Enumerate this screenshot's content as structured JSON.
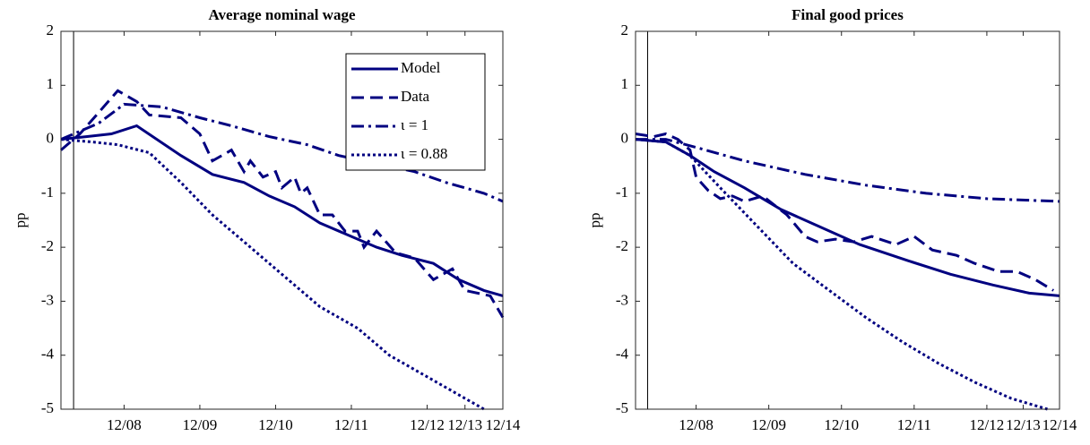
{
  "chart_data": [
    {
      "type": "line",
      "title": "Average nominal wage",
      "ylabel": "pp",
      "xlim": [
        2,
        72
      ],
      "xticks": [
        {
          "value": 12,
          "label": "12/08"
        },
        {
          "value": 24,
          "label": "12/09"
        },
        {
          "value": 36,
          "label": "12/10"
        },
        {
          "value": 48,
          "label": "12/11"
        },
        {
          "value": 60,
          "label": "12/12"
        },
        {
          "value": 66,
          "label": "12/13"
        },
        {
          "value": 72,
          "label": "12/14"
        }
      ],
      "ylim": [
        -5,
        2
      ],
      "yticks": [
        -5,
        -4,
        -3,
        -2,
        -1,
        0,
        1,
        2
      ],
      "event_x": 4,
      "legend": "upper right",
      "series": [
        {
          "name": "Model",
          "color": "#000080",
          "dash": "solid",
          "x": [
            2,
            6,
            10,
            14,
            21,
            26,
            31,
            35,
            39,
            43,
            48,
            52,
            56,
            61,
            65,
            69,
            72
          ],
          "values": [
            0,
            0.05,
            0.1,
            0.25,
            -0.3,
            -0.65,
            -0.8,
            -1.05,
            -1.25,
            -1.55,
            -1.8,
            -2.0,
            -2.15,
            -2.3,
            -2.6,
            -2.8,
            -2.9
          ]
        },
        {
          "name": "Data",
          "color": "#000080",
          "dash": "dashed",
          "x": [
            2,
            5,
            8,
            11,
            14,
            16,
            21,
            24,
            26,
            29,
            31,
            32,
            34,
            36,
            37,
            39,
            40,
            41,
            43,
            45,
            47,
            49,
            50,
            52,
            55,
            58,
            61,
            64,
            66,
            70,
            72
          ],
          "values": [
            -0.2,
            0.1,
            0.5,
            0.9,
            0.7,
            0.45,
            0.4,
            0.1,
            -0.4,
            -0.2,
            -0.6,
            -0.4,
            -0.7,
            -0.6,
            -0.9,
            -0.7,
            -1.0,
            -0.9,
            -1.4,
            -1.4,
            -1.7,
            -1.7,
            -2.0,
            -1.7,
            -2.1,
            -2.2,
            -2.6,
            -2.4,
            -2.8,
            -2.9,
            -3.3
          ]
        },
        {
          "name": "ι = 1",
          "color": "#000080",
          "dash": "dashdot",
          "x": [
            2,
            8,
            12,
            18,
            24,
            29,
            35,
            41,
            46,
            52,
            58,
            63,
            69,
            72
          ],
          "values": [
            0,
            0.3,
            0.65,
            0.6,
            0.4,
            0.25,
            0.05,
            -0.1,
            -0.3,
            -0.45,
            -0.6,
            -0.8,
            -1.0,
            -1.15
          ]
        },
        {
          "name": "ι = 0.88",
          "color": "#000080",
          "dash": "dotted",
          "x": [
            2,
            7,
            11,
            16,
            21,
            26,
            32,
            37,
            43,
            49,
            54,
            60,
            66,
            69
          ],
          "values": [
            0,
            -0.05,
            -0.1,
            -0.25,
            -0.8,
            -1.4,
            -2.0,
            -2.5,
            -3.1,
            -3.5,
            -4.0,
            -4.4,
            -4.8,
            -5.0
          ]
        }
      ]
    },
    {
      "type": "line",
      "title": "Final good prices",
      "ylabel": "pp",
      "xlim": [
        2,
        72
      ],
      "xticks": [
        {
          "value": 12,
          "label": "12/08"
        },
        {
          "value": 24,
          "label": "12/09"
        },
        {
          "value": 36,
          "label": "12/10"
        },
        {
          "value": 48,
          "label": "12/11"
        },
        {
          "value": 60,
          "label": "12/12"
        },
        {
          "value": 66,
          "label": "12/13"
        },
        {
          "value": 72,
          "label": "12/14"
        }
      ],
      "ylim": [
        -5,
        2
      ],
      "yticks": [
        -5,
        -4,
        -3,
        -2,
        -1,
        0,
        1,
        2
      ],
      "event_x": 4,
      "series": [
        {
          "color": "#000080",
          "dash": "solid",
          "x": [
            2,
            7,
            11,
            15,
            20,
            26,
            32,
            39,
            47,
            54,
            61,
            67,
            72
          ],
          "values": [
            0,
            -0.05,
            -0.3,
            -0.6,
            -0.9,
            -1.3,
            -1.6,
            -1.95,
            -2.25,
            -2.5,
            -2.7,
            -2.85,
            -2.9
          ]
        },
        {
          "color": "#000080",
          "dash": "dashed",
          "x": [
            2,
            5,
            7,
            9,
            11,
            12,
            14,
            16,
            18,
            20,
            23,
            27,
            30,
            32,
            35,
            38,
            41,
            45,
            48,
            51,
            55,
            58,
            62,
            65,
            68,
            71
          ],
          "values": [
            0.1,
            0.05,
            0.1,
            0,
            -0.2,
            -0.7,
            -0.95,
            -1.1,
            -1.05,
            -1.15,
            -1.05,
            -1.4,
            -1.8,
            -1.9,
            -1.85,
            -1.9,
            -1.8,
            -1.95,
            -1.8,
            -2.05,
            -2.15,
            -2.3,
            -2.45,
            -2.45,
            -2.6,
            -2.8
          ]
        },
        {
          "color": "#000080",
          "dash": "dashdot",
          "x": [
            2,
            7,
            12,
            20,
            30,
            40,
            50,
            60,
            72
          ],
          "values": [
            0,
            0,
            -0.15,
            -0.4,
            -0.65,
            -0.85,
            -1.0,
            -1.1,
            -1.15
          ]
        },
        {
          "color": "#000080",
          "dash": "dotted",
          "x": [
            2,
            7,
            11,
            16,
            22,
            28,
            34,
            40,
            46,
            52,
            58,
            64,
            70
          ],
          "values": [
            0,
            -0.05,
            -0.3,
            -0.9,
            -1.6,
            -2.3,
            -2.8,
            -3.3,
            -3.75,
            -4.15,
            -4.5,
            -4.8,
            -5.0
          ]
        }
      ]
    }
  ]
}
